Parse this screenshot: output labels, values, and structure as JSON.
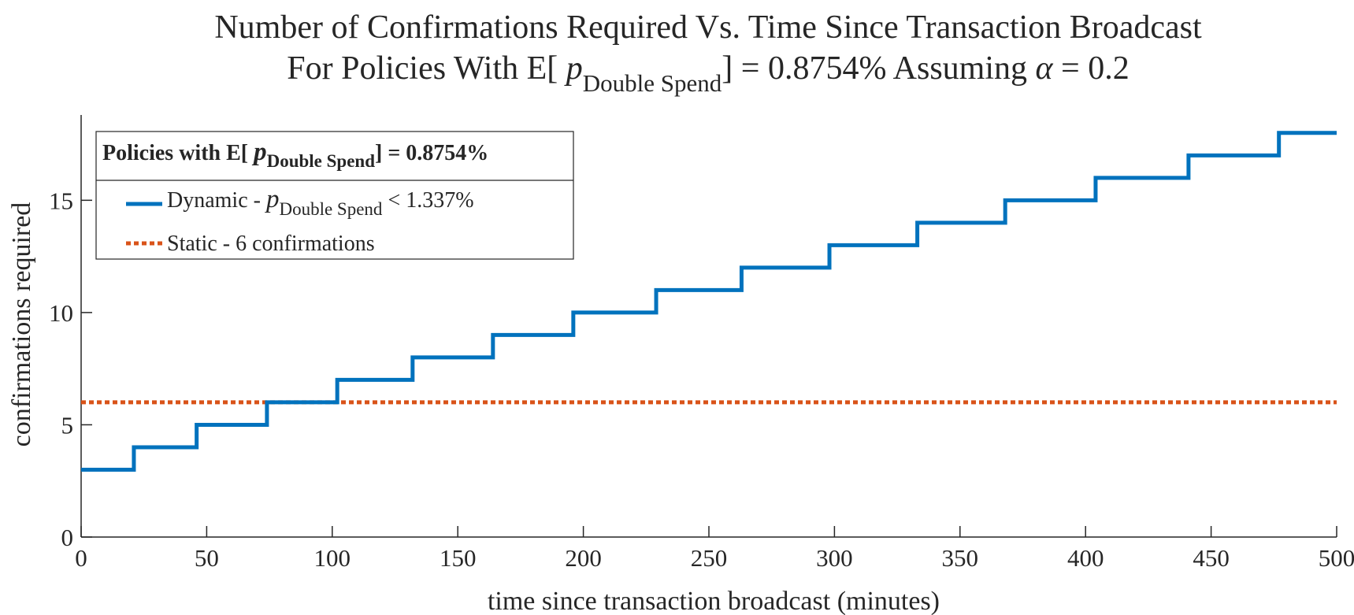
{
  "chart_data": {
    "type": "line",
    "title": {
      "line1": "Number of Confirmations Required Vs. Time Since Transaction Broadcast",
      "line2_prefix": "For Policies With  E[ ",
      "line2_p": "p",
      "line2_sub": "Double Spend",
      "line2_suffix": "] = 0.8754% Assuming ",
      "line2_alpha": "α",
      "line2_end": " = 0.2"
    },
    "xlabel": "time since transaction broadcast (minutes)",
    "ylabel": "confirmations required",
    "xlim": [
      0,
      500
    ],
    "ylim": [
      0,
      18.8
    ],
    "xticks": [
      0,
      50,
      100,
      150,
      200,
      250,
      300,
      350,
      400,
      450,
      500
    ],
    "yticks": [
      0,
      5,
      10,
      15
    ],
    "grid": false,
    "legend": {
      "placement": "top-left",
      "title_prefix": "Policies with E[ ",
      "title_p": "p",
      "title_sub": "Double Spend",
      "title_suffix": "] = 0.8754%"
    },
    "series": [
      {
        "name": "Dynamic",
        "label_prefix": "Dynamic -  ",
        "label_p": "p",
        "label_sub": "Double Spend",
        "label_suffix": " < 1.337%",
        "color": "#0072BD",
        "style": "solid-step",
        "steps": [
          {
            "x": 0,
            "y": 3
          },
          {
            "x": 21,
            "y": 4
          },
          {
            "x": 46,
            "y": 5
          },
          {
            "x": 74,
            "y": 6
          },
          {
            "x": 102,
            "y": 7
          },
          {
            "x": 132,
            "y": 8
          },
          {
            "x": 164,
            "y": 9
          },
          {
            "x": 196,
            "y": 10
          },
          {
            "x": 229,
            "y": 11
          },
          {
            "x": 263,
            "y": 12
          },
          {
            "x": 298,
            "y": 13
          },
          {
            "x": 333,
            "y": 14
          },
          {
            "x": 368,
            "y": 15
          },
          {
            "x": 404,
            "y": 16
          },
          {
            "x": 441,
            "y": 17
          },
          {
            "x": 477,
            "y": 18
          }
        ],
        "x_end": 500
      },
      {
        "name": "Static",
        "label": "Static - 6 confirmations",
        "color": "#D95319",
        "style": "dotted",
        "x": [
          0,
          500
        ],
        "values": [
          6,
          6
        ]
      }
    ]
  }
}
